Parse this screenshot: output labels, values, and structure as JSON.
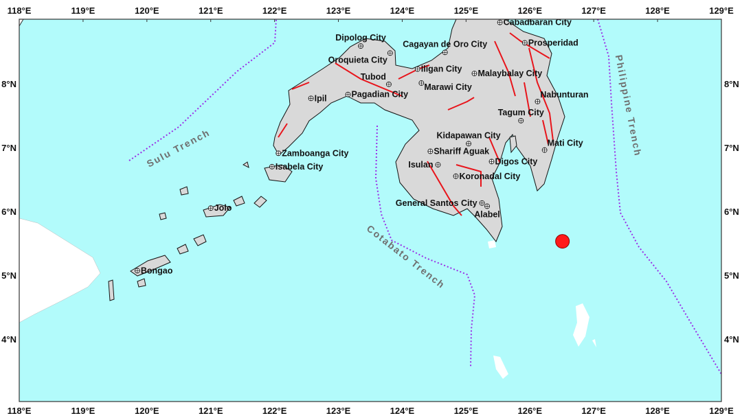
{
  "map": {
    "extent": {
      "lon": [
        118,
        129
      ],
      "lat": [
        3.02,
        9.01
      ]
    },
    "lon_ticks": [
      {
        "value": 118,
        "label": "118°E"
      },
      {
        "value": 119,
        "label": "119°E"
      },
      {
        "value": 120,
        "label": "120°E"
      },
      {
        "value": 121,
        "label": "121°E"
      },
      {
        "value": 122,
        "label": "122°E"
      },
      {
        "value": 123,
        "label": "123°E"
      },
      {
        "value": 124,
        "label": "124°E"
      },
      {
        "value": 125,
        "label": "125°E"
      },
      {
        "value": 126,
        "label": "126°E"
      },
      {
        "value": 127,
        "label": "127°E"
      },
      {
        "value": 128,
        "label": "128°E"
      },
      {
        "value": 129,
        "label": "129°E"
      }
    ],
    "lat_ticks": [
      {
        "value": 8,
        "label": "8°N"
      },
      {
        "value": 7,
        "label": "7°N"
      },
      {
        "value": 6,
        "label": "6°N"
      },
      {
        "value": 5,
        "label": "5°N"
      },
      {
        "value": 4,
        "label": "4°N"
      }
    ],
    "colors": {
      "sea": "#b2fbfb",
      "land": "#d9d9d9",
      "outer_land": "#ffffff",
      "fault": "#e8141b",
      "trench": "#9a2ee6",
      "epicenter": "#ff1a1a"
    },
    "epicenter": {
      "lon": 126.51,
      "lat": 5.53,
      "icon": "red-circle-icon"
    },
    "cities": [
      {
        "name": "Dipolog City",
        "lon": 123.35,
        "lat": 8.59,
        "anchor": "above"
      },
      {
        "name": "Oroquieta City",
        "lon": 123.81,
        "lat": 8.48,
        "anchor": "below-left"
      },
      {
        "name": "Cagayan de Oro City",
        "lon": 124.67,
        "lat": 8.49,
        "anchor": "above"
      },
      {
        "name": "Iligan City",
        "lon": 124.24,
        "lat": 8.23,
        "anchor": "right"
      },
      {
        "name": "Tubod",
        "lon": 123.79,
        "lat": 7.99,
        "anchor": "above-left"
      },
      {
        "name": "Malaybalay City",
        "lon": 125.13,
        "lat": 8.16,
        "anchor": "right"
      },
      {
        "name": "Marawi City",
        "lon": 124.3,
        "lat": 8.01,
        "anchor": "below-right"
      },
      {
        "name": "Pagadian City",
        "lon": 123.15,
        "lat": 7.83,
        "anchor": "right"
      },
      {
        "name": "Ipil",
        "lon": 122.57,
        "lat": 7.77,
        "anchor": "right"
      },
      {
        "name": "Cabadbaran City",
        "lon": 125.53,
        "lat": 8.96,
        "anchor": "right"
      },
      {
        "name": "Prosperidad",
        "lon": 125.92,
        "lat": 8.64,
        "anchor": "right"
      },
      {
        "name": "Nabunturan",
        "lon": 126.12,
        "lat": 7.72,
        "anchor": "above-right"
      },
      {
        "name": "Tagum City",
        "lon": 125.86,
        "lat": 7.42,
        "anchor": "above"
      },
      {
        "name": "Mati City",
        "lon": 126.23,
        "lat": 6.96,
        "anchor": "above-right"
      },
      {
        "name": "Kidapawan City",
        "lon": 125.04,
        "lat": 7.06,
        "anchor": "above"
      },
      {
        "name": "Shariff Aguak",
        "lon": 124.44,
        "lat": 6.94,
        "anchor": "right"
      },
      {
        "name": "Isulan",
        "lon": 124.56,
        "lat": 6.73,
        "anchor": "left"
      },
      {
        "name": "Digos City",
        "lon": 125.4,
        "lat": 6.78,
        "anchor": "right"
      },
      {
        "name": "Koronadal City",
        "lon": 124.84,
        "lat": 6.55,
        "anchor": "right"
      },
      {
        "name": "General Santos City",
        "lon": 125.25,
        "lat": 6.13,
        "anchor": "left"
      },
      {
        "name": "Alabel",
        "lon": 125.33,
        "lat": 6.08,
        "anchor": "below"
      },
      {
        "name": "Zamboanga City",
        "lon": 122.06,
        "lat": 6.91,
        "anchor": "right"
      },
      {
        "name": "Isabela City",
        "lon": 121.96,
        "lat": 6.7,
        "anchor": "right"
      },
      {
        "name": "Jolo",
        "lon": 121.0,
        "lat": 6.05,
        "anchor": "right"
      },
      {
        "name": "Bongao",
        "lon": 119.85,
        "lat": 5.07,
        "anchor": "right"
      }
    ],
    "trenches": [
      {
        "name": "Sulu Trench"
      },
      {
        "name": "Cotabato Trench"
      },
      {
        "name": "Philippine Trench"
      }
    ]
  }
}
